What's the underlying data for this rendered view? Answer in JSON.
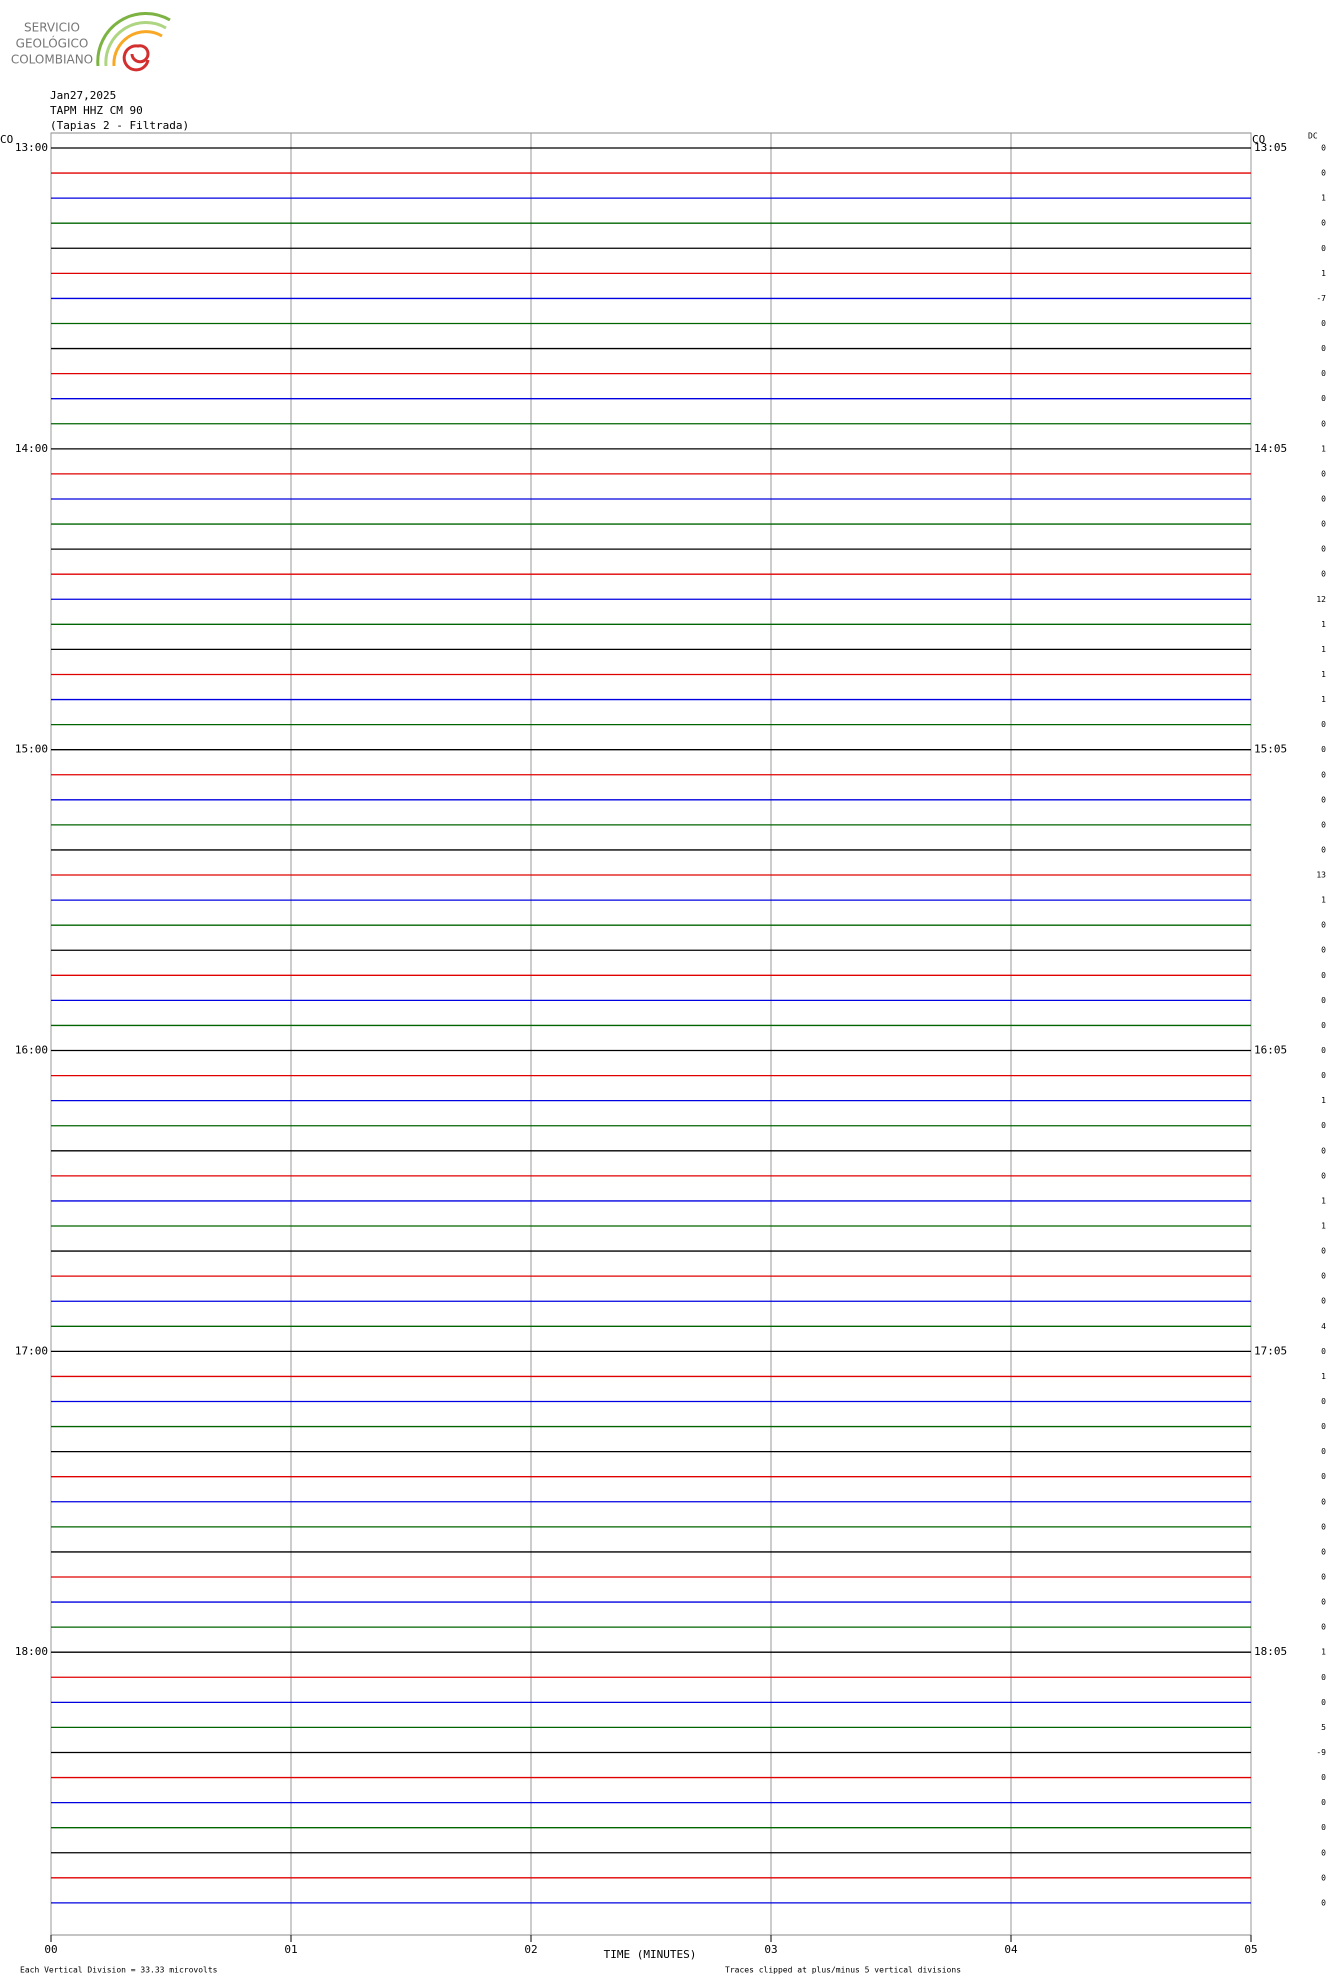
{
  "header": {
    "logo": [
      "SERVICIO",
      "GEOLÓGICO",
      "COLOMBIANO"
    ],
    "date": "Jan27,2025",
    "station": "TAPM HHZ CM 90",
    "location": "(Tapias 2 - Filtrada)",
    "network_left": "CO",
    "network_right": "CO",
    "dc_header": "DC"
  },
  "hour_labels_left": [
    "13:00",
    "14:00",
    "15:00",
    "16:00",
    "17:00",
    "18:00"
  ],
  "hour_labels_right": [
    "13:05",
    "14:05",
    "15:05",
    "16:05",
    "17:05",
    "18:05"
  ],
  "traces": {
    "colors": [
      "#000000",
      "#e00000",
      "#0000e0",
      "#006400"
    ],
    "dc": [
      0,
      0,
      1,
      0,
      0,
      1,
      -7,
      0,
      0,
      0,
      0,
      0,
      1,
      0,
      0,
      0,
      0,
      0,
      12,
      1,
      1,
      1,
      1,
      0,
      0,
      0,
      0,
      0,
      0,
      13,
      1,
      0,
      0,
      0,
      0,
      0,
      0,
      0,
      1,
      0,
      0,
      0,
      1,
      1,
      0,
      0,
      0,
      4,
      0,
      1,
      0,
      0,
      0,
      0,
      0,
      0,
      0,
      0,
      0,
      0,
      1,
      0,
      0,
      5,
      -9,
      0,
      0,
      0,
      0,
      0,
      0
    ]
  },
  "x_axis": {
    "ticks": [
      "00",
      "01",
      "02",
      "03",
      "04",
      "05"
    ],
    "title": "TIME (MINUTES)"
  },
  "footer": {
    "division_note": "Each Vertical Division = 33.33 microvolts",
    "clip_note": "Traces clipped at plus/minus 5 vertical divisions"
  }
}
